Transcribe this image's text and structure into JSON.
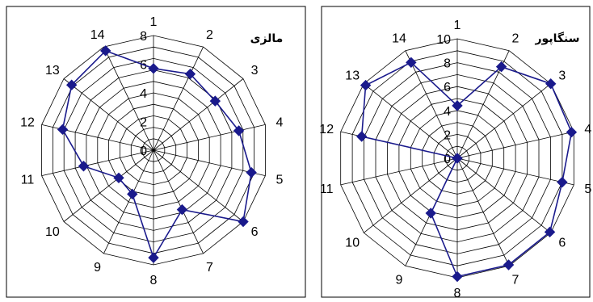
{
  "chart_data": [
    {
      "type": "radar",
      "title": "مالزی",
      "categories": [
        "1",
        "2",
        "3",
        "4",
        "5",
        "6",
        "7",
        "8",
        "9",
        "10",
        "11",
        "12",
        "13",
        "14"
      ],
      "rlim": [
        0,
        8
      ],
      "ticks": [
        "0",
        "2",
        "4",
        "6",
        "8"
      ],
      "grid": true,
      "series": [
        {
          "color": "#1a1a8c",
          "marker": "diamond",
          "values": [
            5.7,
            5.9,
            5.5,
            6.1,
            7.0,
            8.0,
            4.6,
            7.5,
            3.4,
            3.1,
            5.0,
            6.5,
            7.3,
            7.7
          ]
        }
      ]
    },
    {
      "type": "radar",
      "title": "سنگاپور",
      "categories": [
        "1",
        "2",
        "3",
        "4",
        "5",
        "6",
        "7",
        "8",
        "9",
        "10",
        "11",
        "12",
        "13",
        "14"
      ],
      "rlim": [
        0,
        10
      ],
      "ticks": [
        "0",
        "2",
        "4",
        "6",
        "8",
        "10"
      ],
      "grid": true,
      "series": [
        {
          "color": "#1a1a8c",
          "marker": "diamond",
          "values": [
            4.4,
            8.5,
            10.0,
            9.8,
            9.0,
            9.9,
            9.9,
            9.9,
            5.1,
            0.0,
            0.0,
            8.2,
            9.8,
            8.9
          ]
        }
      ]
    }
  ]
}
